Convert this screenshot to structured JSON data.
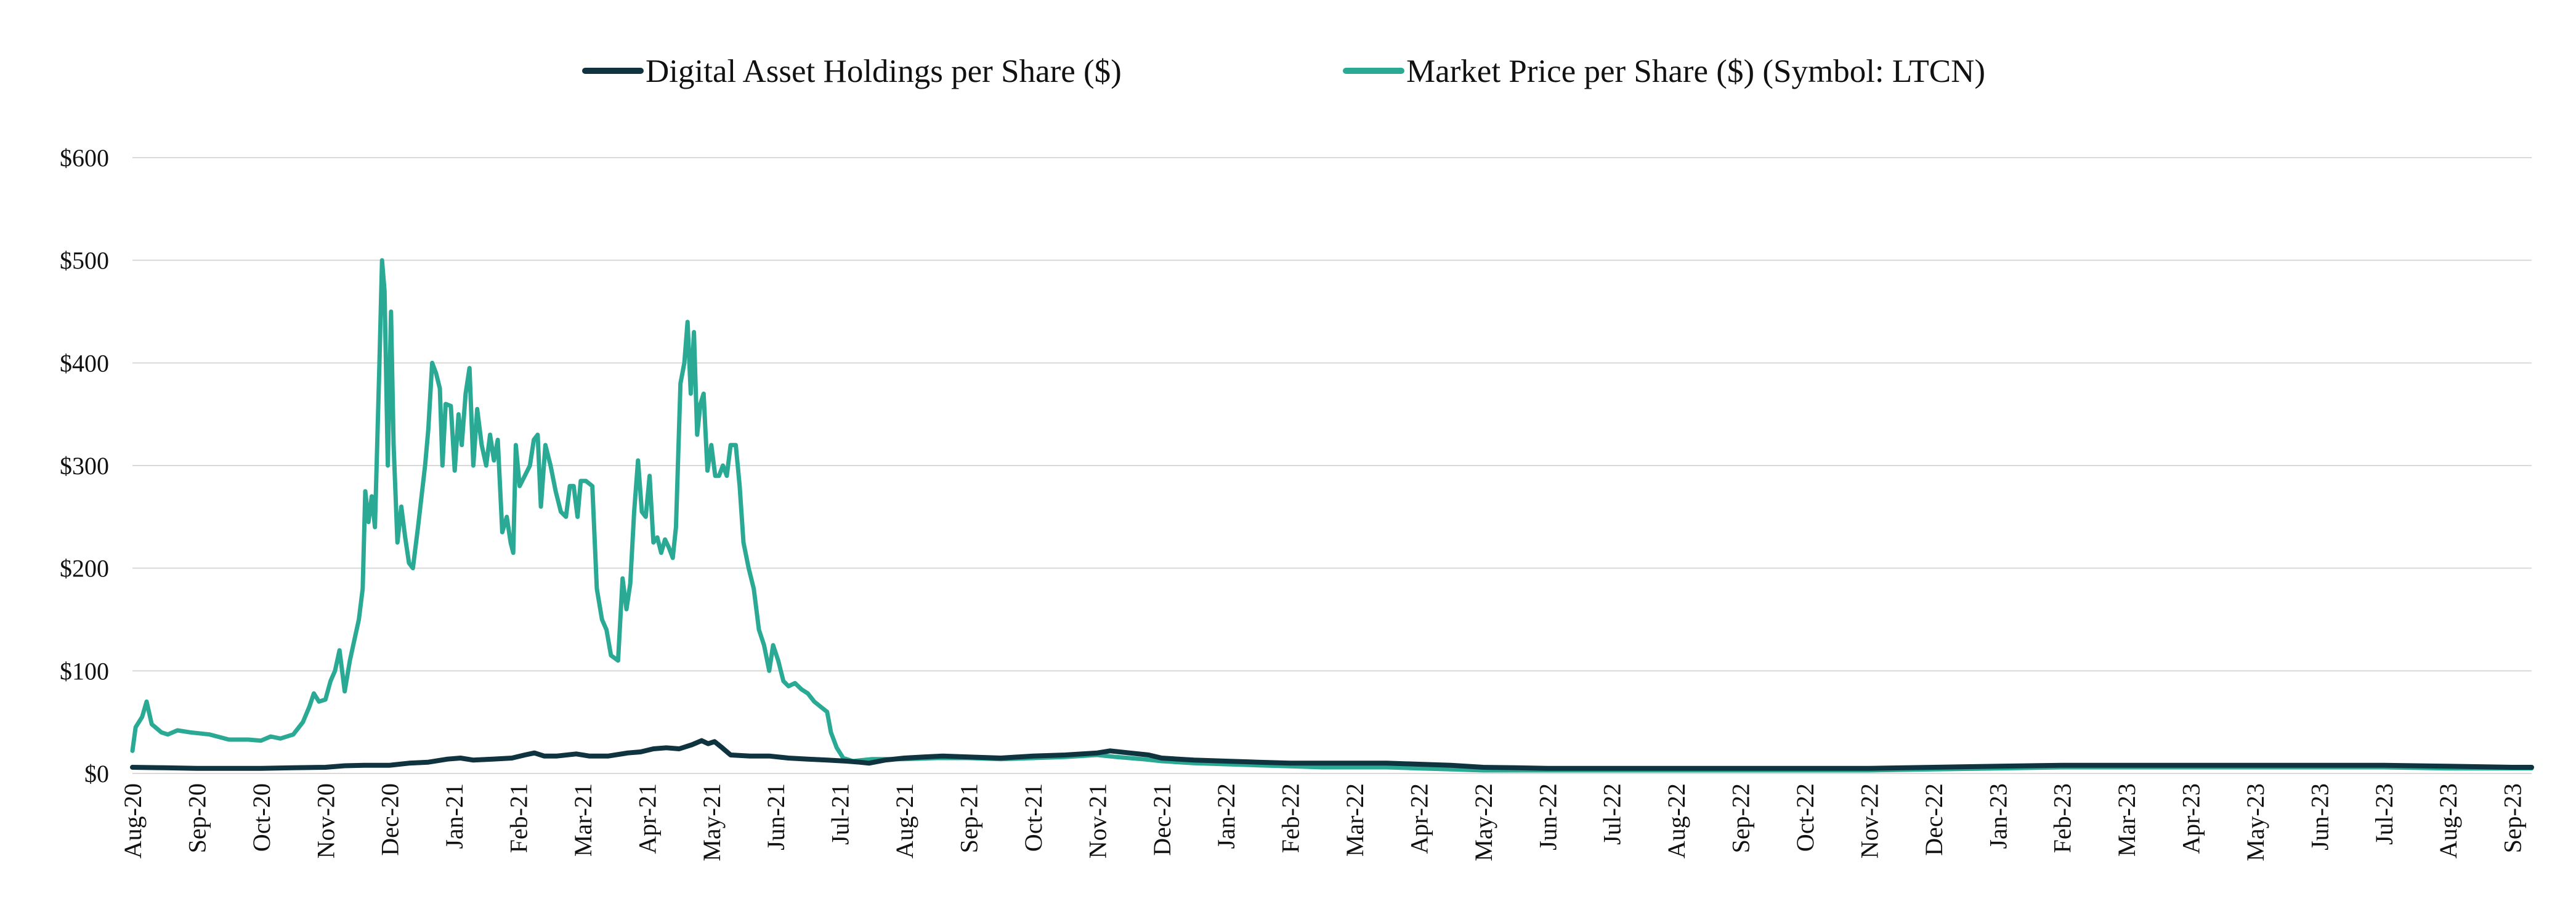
{
  "chart_data": {
    "type": "line",
    "title": "",
    "xlabel": "",
    "ylabel": "",
    "ylim": [
      0,
      600
    ],
    "grid": true,
    "legend_position": "top-center",
    "y_ticks": [
      {
        "value": 0,
        "label": "$0"
      },
      {
        "value": 100,
        "label": "$100"
      },
      {
        "value": 200,
        "label": "$200"
      },
      {
        "value": 300,
        "label": "$300"
      },
      {
        "value": 400,
        "label": "$400"
      },
      {
        "value": 500,
        "label": "$500"
      },
      {
        "value": 600,
        "label": "$600"
      }
    ],
    "x_ticks": [
      "Aug-20",
      "Sep-20",
      "Oct-20",
      "Nov-20",
      "Dec-20",
      "Jan-21",
      "Feb-21",
      "Mar-21",
      "Apr-21",
      "May-21",
      "Jun-21",
      "Jul-21",
      "Aug-21",
      "Sep-21",
      "Oct-21",
      "Nov-21",
      "Dec-21",
      "Jan-22",
      "Feb-22",
      "Mar-22",
      "Apr-22",
      "May-22",
      "Jun-22",
      "Jul-22",
      "Aug-22",
      "Sep-22",
      "Oct-22",
      "Nov-22",
      "Dec-22",
      "Jan-23",
      "Feb-23",
      "Mar-23",
      "Apr-23",
      "May-23",
      "Jun-23",
      "Jul-23",
      "Aug-23",
      "Sep-23"
    ],
    "series": [
      {
        "name": "Digital Asset Holdings per Share ($)",
        "color": "#0f3440",
        "points": [
          [
            0,
            6
          ],
          [
            0.5,
            5.5
          ],
          [
            1,
            5
          ],
          [
            1.5,
            5
          ],
          [
            2,
            5
          ],
          [
            2.5,
            5.5
          ],
          [
            3,
            6
          ],
          [
            3.3,
            7.5
          ],
          [
            3.6,
            8
          ],
          [
            4,
            8
          ],
          [
            4.3,
            10
          ],
          [
            4.6,
            11
          ],
          [
            4.9,
            14
          ],
          [
            5.1,
            15
          ],
          [
            5.3,
            13
          ],
          [
            5.6,
            14
          ],
          [
            5.9,
            15
          ],
          [
            6.1,
            18
          ],
          [
            6.25,
            20
          ],
          [
            6.4,
            17
          ],
          [
            6.6,
            17
          ],
          [
            6.9,
            19
          ],
          [
            7.1,
            17
          ],
          [
            7.4,
            17
          ],
          [
            7.7,
            20
          ],
          [
            7.9,
            21
          ],
          [
            8.1,
            24
          ],
          [
            8.3,
            25
          ],
          [
            8.5,
            24
          ],
          [
            8.7,
            28
          ],
          [
            8.85,
            32
          ],
          [
            8.95,
            29
          ],
          [
            9.05,
            31
          ],
          [
            9.15,
            26
          ],
          [
            9.3,
            18
          ],
          [
            9.6,
            17
          ],
          [
            9.9,
            17
          ],
          [
            10.2,
            15
          ],
          [
            10.5,
            14
          ],
          [
            10.8,
            13
          ],
          [
            11.1,
            12
          ],
          [
            11.3,
            11
          ],
          [
            11.45,
            10
          ],
          [
            11.7,
            13
          ],
          [
            12,
            15
          ],
          [
            12.3,
            16
          ],
          [
            12.6,
            17
          ],
          [
            13,
            16
          ],
          [
            13.5,
            15
          ],
          [
            14,
            17
          ],
          [
            14.5,
            18
          ],
          [
            15,
            20
          ],
          [
            15.2,
            22
          ],
          [
            15.5,
            20
          ],
          [
            15.8,
            18
          ],
          [
            16,
            15
          ],
          [
            16.5,
            13
          ],
          [
            17,
            12
          ],
          [
            17.5,
            11
          ],
          [
            18,
            10
          ],
          [
            18.5,
            10
          ],
          [
            19,
            10
          ],
          [
            19.5,
            10
          ],
          [
            20,
            9
          ],
          [
            20.5,
            8
          ],
          [
            21,
            6
          ],
          [
            21.5,
            5.5
          ],
          [
            22,
            5
          ],
          [
            23,
            5
          ],
          [
            24,
            5
          ],
          [
            25,
            5
          ],
          [
            26,
            5
          ],
          [
            27,
            5
          ],
          [
            28,
            6
          ],
          [
            29,
            7
          ],
          [
            30,
            8
          ],
          [
            31,
            8
          ],
          [
            32,
            8
          ],
          [
            33,
            8
          ],
          [
            34,
            8
          ],
          [
            35,
            8
          ],
          [
            36,
            7
          ],
          [
            37,
            6
          ],
          [
            37.3,
            6
          ]
        ]
      },
      {
        "name": "Market Price per Share ($) (Symbol: LTCN)",
        "color": "#2aaa94",
        "points": [
          [
            0,
            22
          ],
          [
            0.05,
            45
          ],
          [
            0.15,
            55
          ],
          [
            0.22,
            70
          ],
          [
            0.3,
            48
          ],
          [
            0.45,
            40
          ],
          [
            0.55,
            38
          ],
          [
            0.7,
            42
          ],
          [
            0.9,
            40
          ],
          [
            1.2,
            38
          ],
          [
            1.5,
            33
          ],
          [
            1.8,
            33
          ],
          [
            2,
            32
          ],
          [
            2.15,
            36
          ],
          [
            2.3,
            34
          ],
          [
            2.5,
            38
          ],
          [
            2.65,
            50
          ],
          [
            2.75,
            65
          ],
          [
            2.82,
            78
          ],
          [
            2.9,
            70
          ],
          [
            3,
            72
          ],
          [
            3.08,
            90
          ],
          [
            3.15,
            100
          ],
          [
            3.22,
            120
          ],
          [
            3.3,
            80
          ],
          [
            3.38,
            110
          ],
          [
            3.45,
            130
          ],
          [
            3.52,
            150
          ],
          [
            3.58,
            180
          ],
          [
            3.62,
            275
          ],
          [
            3.67,
            245
          ],
          [
            3.72,
            270
          ],
          [
            3.77,
            240
          ],
          [
            3.84,
            400
          ],
          [
            3.88,
            500
          ],
          [
            3.92,
            470
          ],
          [
            3.97,
            300
          ],
          [
            4.02,
            450
          ],
          [
            4.06,
            320
          ],
          [
            4.12,
            225
          ],
          [
            4.18,
            260
          ],
          [
            4.24,
            230
          ],
          [
            4.3,
            205
          ],
          [
            4.36,
            200
          ],
          [
            4.44,
            240
          ],
          [
            4.55,
            300
          ],
          [
            4.6,
            335
          ],
          [
            4.66,
            400
          ],
          [
            4.72,
            390
          ],
          [
            4.78,
            375
          ],
          [
            4.82,
            300
          ],
          [
            4.87,
            360
          ],
          [
            4.95,
            358
          ],
          [
            5.01,
            295
          ],
          [
            5.07,
            350
          ],
          [
            5.12,
            320
          ],
          [
            5.18,
            370
          ],
          [
            5.24,
            395
          ],
          [
            5.3,
            300
          ],
          [
            5.36,
            355
          ],
          [
            5.43,
            320
          ],
          [
            5.5,
            300
          ],
          [
            5.56,
            330
          ],
          [
            5.62,
            305
          ],
          [
            5.68,
            325
          ],
          [
            5.75,
            235
          ],
          [
            5.82,
            250
          ],
          [
            5.88,
            225
          ],
          [
            5.92,
            215
          ],
          [
            5.96,
            320
          ],
          [
            6.02,
            280
          ],
          [
            6.1,
            290
          ],
          [
            6.18,
            300
          ],
          [
            6.24,
            325
          ],
          [
            6.3,
            330
          ],
          [
            6.35,
            260
          ],
          [
            6.42,
            320
          ],
          [
            6.5,
            300
          ],
          [
            6.58,
            275
          ],
          [
            6.66,
            255
          ],
          [
            6.74,
            250
          ],
          [
            6.8,
            280
          ],
          [
            6.86,
            280
          ],
          [
            6.92,
            250
          ],
          [
            6.97,
            285
          ],
          [
            7.05,
            285
          ],
          [
            7.15,
            280
          ],
          [
            7.22,
            180
          ],
          [
            7.3,
            150
          ],
          [
            7.37,
            140
          ],
          [
            7.44,
            115
          ],
          [
            7.55,
            110
          ],
          [
            7.62,
            190
          ],
          [
            7.68,
            160
          ],
          [
            7.74,
            185
          ],
          [
            7.8,
            255
          ],
          [
            7.86,
            305
          ],
          [
            7.92,
            255
          ],
          [
            7.98,
            250
          ],
          [
            8.04,
            290
          ],
          [
            8.1,
            225
          ],
          [
            8.16,
            230
          ],
          [
            8.22,
            215
          ],
          [
            8.28,
            228
          ],
          [
            8.34,
            220
          ],
          [
            8.4,
            210
          ],
          [
            8.45,
            240
          ],
          [
            8.52,
            380
          ],
          [
            8.58,
            400
          ],
          [
            8.63,
            440
          ],
          [
            8.68,
            370
          ],
          [
            8.73,
            430
          ],
          [
            8.78,
            330
          ],
          [
            8.83,
            360
          ],
          [
            8.88,
            370
          ],
          [
            8.94,
            295
          ],
          [
            9.0,
            320
          ],
          [
            9.06,
            290
          ],
          [
            9.12,
            290
          ],
          [
            9.18,
            300
          ],
          [
            9.24,
            290
          ],
          [
            9.3,
            320
          ],
          [
            9.38,
            320
          ],
          [
            9.44,
            280
          ],
          [
            9.5,
            225
          ],
          [
            9.58,
            200
          ],
          [
            9.66,
            180
          ],
          [
            9.74,
            140
          ],
          [
            9.82,
            125
          ],
          [
            9.9,
            100
          ],
          [
            9.96,
            125
          ],
          [
            10.04,
            110
          ],
          [
            10.12,
            90
          ],
          [
            10.2,
            85
          ],
          [
            10.3,
            88
          ],
          [
            10.4,
            82
          ],
          [
            10.5,
            78
          ],
          [
            10.6,
            70
          ],
          [
            10.7,
            65
          ],
          [
            10.8,
            60
          ],
          [
            10.86,
            40
          ],
          [
            10.95,
            25
          ],
          [
            11.05,
            15
          ],
          [
            11.2,
            12
          ],
          [
            11.5,
            14
          ],
          [
            12,
            14
          ],
          [
            12.5,
            15
          ],
          [
            13,
            15
          ],
          [
            13.5,
            14
          ],
          [
            14,
            15
          ],
          [
            14.5,
            16
          ],
          [
            15,
            18
          ],
          [
            15.3,
            16
          ],
          [
            15.7,
            14
          ],
          [
            16,
            12
          ],
          [
            16.5,
            10
          ],
          [
            17,
            9
          ],
          [
            17.5,
            8
          ],
          [
            18,
            7
          ],
          [
            18.5,
            6
          ],
          [
            19,
            6
          ],
          [
            19.5,
            6
          ],
          [
            20,
            5
          ],
          [
            20.5,
            4
          ],
          [
            21,
            3
          ],
          [
            22,
            3
          ],
          [
            23,
            3
          ],
          [
            24,
            3
          ],
          [
            25,
            3
          ],
          [
            26,
            3
          ],
          [
            27,
            3
          ],
          [
            28,
            4
          ],
          [
            29,
            5
          ],
          [
            30,
            6
          ],
          [
            31,
            6
          ],
          [
            32,
            6
          ],
          [
            33,
            6
          ],
          [
            34,
            6
          ],
          [
            35,
            6
          ],
          [
            36,
            5
          ],
          [
            37,
            5
          ],
          [
            37.3,
            5
          ]
        ]
      }
    ]
  }
}
